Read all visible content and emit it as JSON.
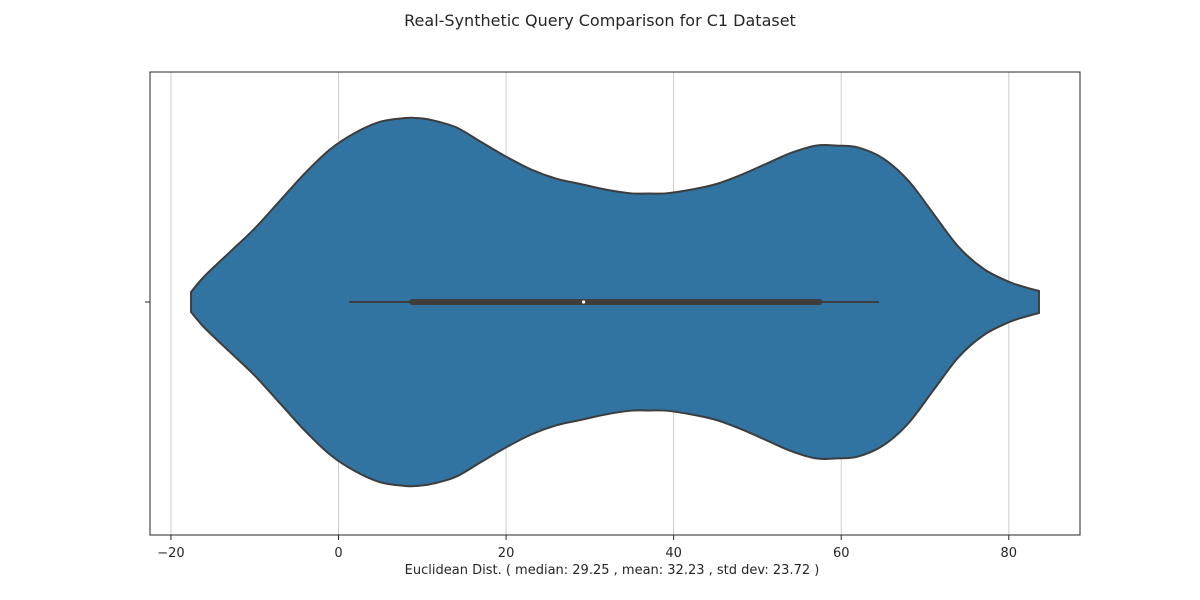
{
  "chart_data": {
    "type": "violin",
    "title": "Real-Synthetic Query Comparison for C1 Dataset",
    "xlabel": "Euclidean Dist. ( median: 29.25 , mean: 32.23 , std dev: 23.72 )",
    "ylabel": "",
    "xlim": [
      -22.5,
      88.5
    ],
    "xticks": [
      -20,
      0,
      20,
      40,
      60,
      80
    ],
    "xtick_labels": [
      "−20",
      "0",
      "20",
      "40",
      "60",
      "80"
    ],
    "grid": "vertical",
    "orientation": "horizontal",
    "color": "#3274a1",
    "outline_color": "#3d3d3d",
    "median_color": "#ffffff",
    "summary": {
      "median": 29.25,
      "q1": 8.8,
      "q3": 57.4,
      "whisker_low": 1.3,
      "whisker_high": 64.5
    },
    "density_profile": {
      "x": [
        -17.6,
        -16,
        -13,
        -10,
        -7,
        -4,
        -1,
        2,
        5,
        8,
        9.2,
        11,
        14,
        17,
        20,
        23,
        26,
        29,
        32,
        35,
        37,
        39,
        42,
        45,
        48,
        51,
        54,
        57,
        59.5,
        62,
        65,
        68,
        71,
        74,
        77,
        80,
        82,
        83.6
      ],
      "width": [
        0.055,
        0.14,
        0.27,
        0.4,
        0.55,
        0.7,
        0.83,
        0.92,
        0.98,
        1.0,
        1.0,
        0.99,
        0.95,
        0.87,
        0.79,
        0.72,
        0.67,
        0.64,
        0.61,
        0.59,
        0.59,
        0.59,
        0.61,
        0.64,
        0.69,
        0.75,
        0.81,
        0.85,
        0.85,
        0.84,
        0.78,
        0.66,
        0.48,
        0.3,
        0.18,
        0.11,
        0.08,
        0.06
      ]
    }
  }
}
